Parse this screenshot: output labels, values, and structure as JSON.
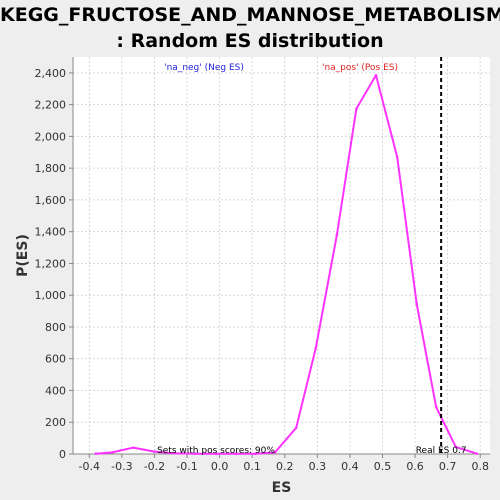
{
  "title": {
    "line1": "KEGG_FRUCTOSE_AND_MANNOSE_METABOLISM",
    "line2": ": Random ES distribution"
  },
  "chart_data": {
    "type": "line",
    "xlabel": "ES",
    "ylabel": "P(ES)",
    "xlim": [
      -0.45,
      0.83
    ],
    "ylim": [
      0,
      2500
    ],
    "x_ticks": [
      "-0.4",
      "-0.3",
      "-0.2",
      "-0.1",
      "0.0",
      "0.1",
      "0.2",
      "0.3",
      "0.4",
      "0.5",
      "0.6",
      "0.7",
      "0.8"
    ],
    "y_ticks": [
      "0",
      "200",
      "400",
      "600",
      "800",
      "1,000",
      "1,200",
      "1,400",
      "1,600",
      "1,800",
      "2,000",
      "2,200",
      "2,400"
    ],
    "grid": true,
    "series": [
      {
        "color": "#ff33ff",
        "x": [
          -0.38,
          -0.33,
          -0.265,
          -0.2,
          -0.14,
          -0.075,
          -0.01,
          0.05,
          0.11,
          0.17,
          0.235,
          0.295,
          0.36,
          0.42,
          0.48,
          0.545,
          0.605,
          0.665,
          0.725,
          0.79
        ],
        "y": [
          2,
          10,
          40,
          15,
          5,
          2,
          1,
          1,
          1,
          10,
          165,
          665,
          1380,
          2175,
          2385,
          1870,
          945,
          295,
          45,
          2
        ]
      }
    ],
    "reference_line": {
      "x": 0.68,
      "label": "Real ES 0.7",
      "color": "#000000"
    },
    "annotations": {
      "neg": {
        "text": "'na_neg' (Neg ES)",
        "color": "#2222dd"
      },
      "pos": {
        "text": "'na_pos' (Pos ES)",
        "color": "#dd2222"
      },
      "footer": "Sets with pos scores: 90%"
    }
  }
}
